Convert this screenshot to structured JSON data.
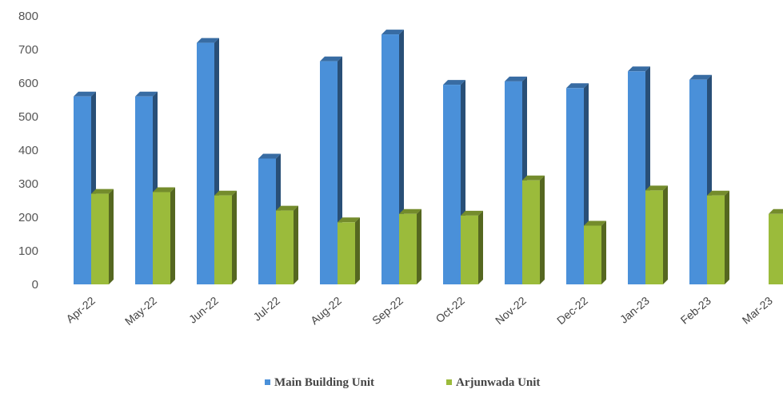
{
  "chart_data": {
    "type": "bar",
    "title": "",
    "xlabel": "",
    "ylabel": "",
    "ylim": [
      0,
      800
    ],
    "yticks": [
      0,
      100,
      200,
      300,
      400,
      500,
      600,
      700,
      800
    ],
    "categories": [
      "Apr-22",
      "May-22",
      "Jun-22",
      "Jul-22",
      "Aug-22",
      "Sep-22",
      "Oct-22",
      "Nov-22",
      "Dec-22",
      "Jan-23",
      "Feb-23",
      "Mar-23"
    ],
    "series": [
      {
        "name": "Main Building Unit",
        "color": "#4a90d9",
        "values": [
          560,
          560,
          720,
          375,
          665,
          745,
          595,
          605,
          585,
          635,
          610,
          null
        ]
      },
      {
        "name": "Arjunwada Unit",
        "color": "#9bbb3b",
        "values": [
          270,
          275,
          265,
          220,
          185,
          210,
          205,
          310,
          175,
          280,
          265,
          210
        ]
      }
    ],
    "grid": false,
    "legend_position": "bottom-center"
  }
}
